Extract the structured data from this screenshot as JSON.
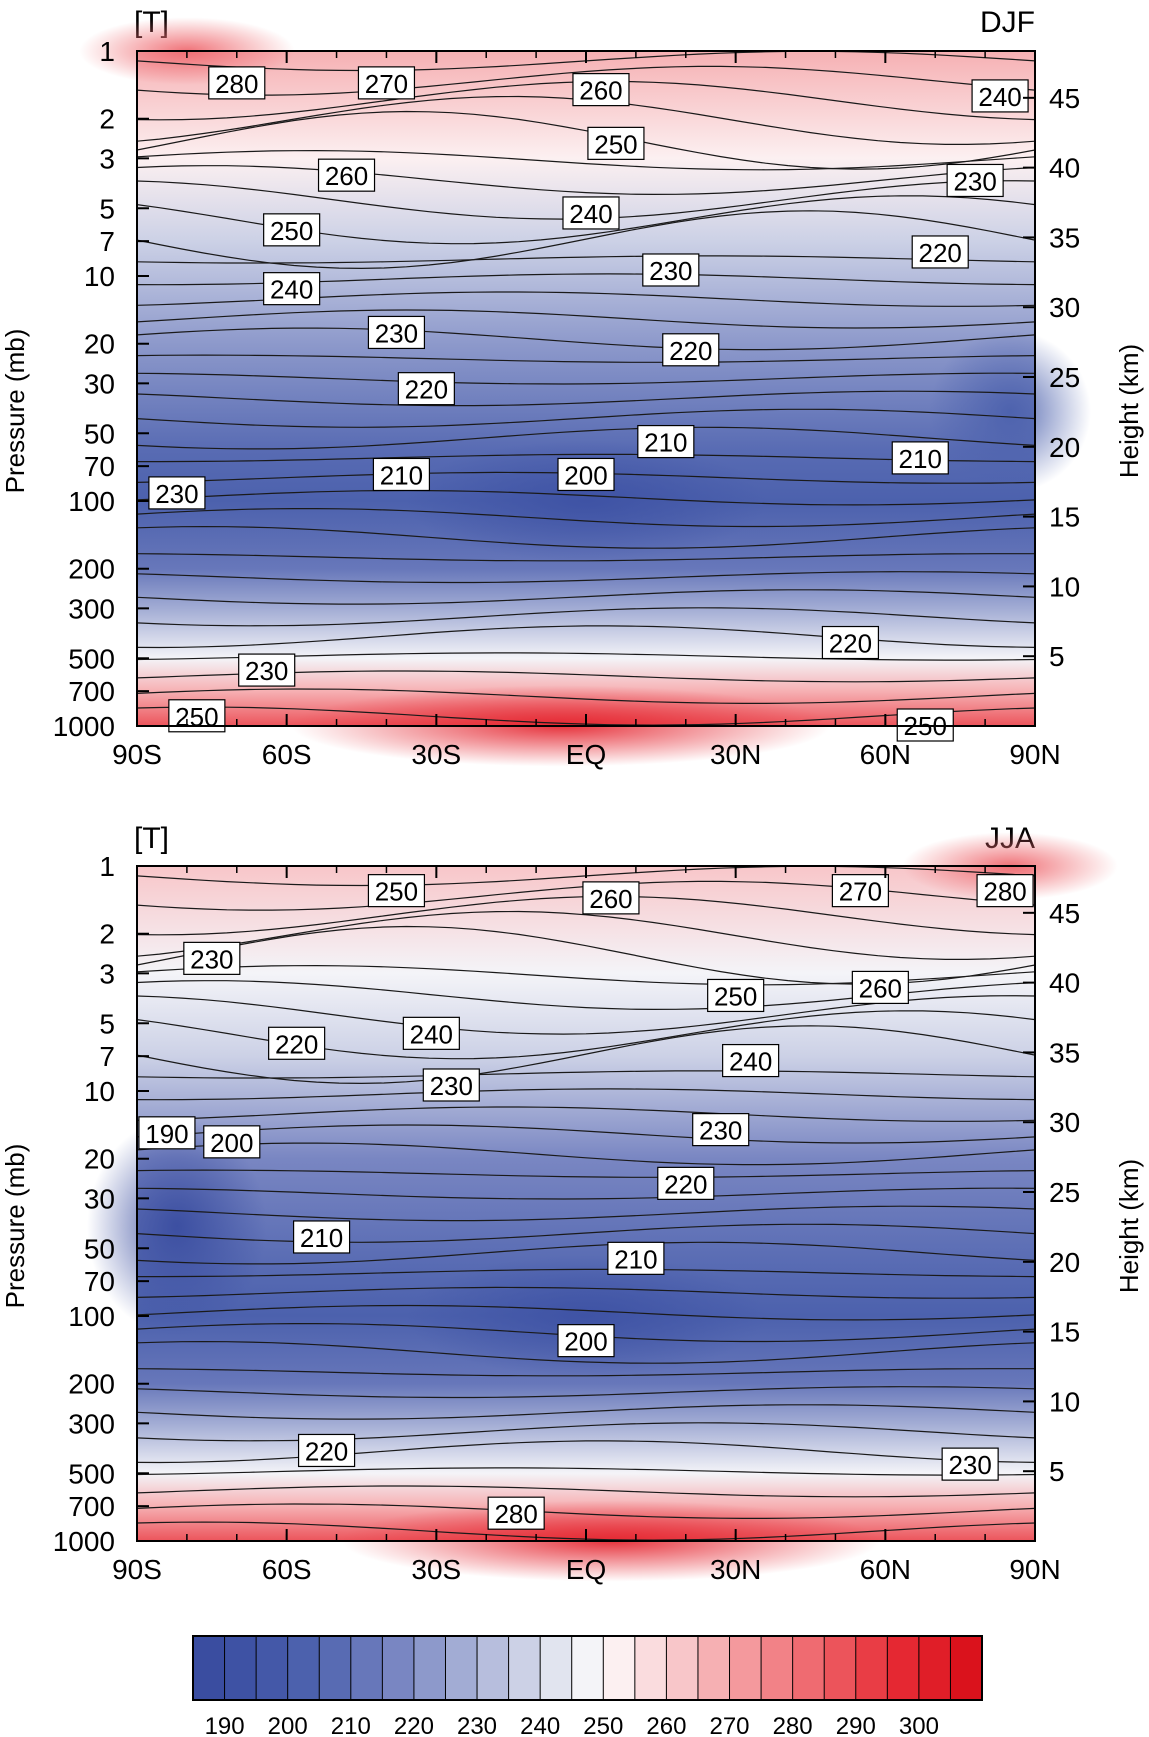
{
  "chart_data": [
    {
      "type": "heatmap",
      "variable": "[T]",
      "season": "DJF",
      "xlabel": "",
      "ylabel": "Pressure (mb)",
      "y2label": "Height (km)",
      "x_ticks": [
        "90S",
        "60S",
        "30S",
        "EQ",
        "30N",
        "60N",
        "90N"
      ],
      "x_values": [
        -90,
        -60,
        -30,
        0,
        30,
        60,
        90
      ],
      "y_ticks": [
        "1",
        "2",
        "3",
        "5",
        "7",
        "10",
        "20",
        "30",
        "50",
        "70",
        "100",
        "200",
        "300",
        "500",
        "700",
        "1000"
      ],
      "y_values": [
        1,
        2,
        3,
        5,
        7,
        10,
        20,
        30,
        50,
        70,
        100,
        200,
        300,
        500,
        700,
        1000
      ],
      "y_scale": "log",
      "ylim": [
        1000,
        1
      ],
      "y2_ticks": [
        "5",
        "10",
        "15",
        "20",
        "25",
        "30",
        "35",
        "40",
        "45"
      ],
      "y2_values": [
        5,
        10,
        15,
        20,
        25,
        30,
        35,
        40,
        45
      ],
      "contour_labels": [
        {
          "text": "280",
          "lat": -70,
          "p": 1.4
        },
        {
          "text": "270",
          "lat": -40,
          "p": 1.4
        },
        {
          "text": "260",
          "lat": 3,
          "p": 1.5
        },
        {
          "text": "240",
          "lat": 83,
          "p": 1.6
        },
        {
          "text": "250",
          "lat": 6,
          "p": 2.6
        },
        {
          "text": "260",
          "lat": -48,
          "p": 3.6
        },
        {
          "text": "230",
          "lat": 78,
          "p": 3.8
        },
        {
          "text": "240",
          "lat": 1,
          "p": 5.3
        },
        {
          "text": "250",
          "lat": -59,
          "p": 6.3
        },
        {
          "text": "220",
          "lat": 71,
          "p": 7.9
        },
        {
          "text": "230",
          "lat": 17,
          "p": 9.5
        },
        {
          "text": "240",
          "lat": -59,
          "p": 11.5
        },
        {
          "text": "230",
          "lat": -38,
          "p": 18
        },
        {
          "text": "220",
          "lat": 21,
          "p": 21.5
        },
        {
          "text": "220",
          "lat": -32,
          "p": 32
        },
        {
          "text": "210",
          "lat": 16,
          "p": 55
        },
        {
          "text": "210",
          "lat": 67,
          "p": 65
        },
        {
          "text": "210",
          "lat": -37,
          "p": 77
        },
        {
          "text": "200",
          "lat": 0,
          "p": 77
        },
        {
          "text": "230",
          "lat": -82,
          "p": 93
        },
        {
          "text": "220",
          "lat": 53,
          "p": 430
        },
        {
          "text": "230",
          "lat": -64,
          "p": 570
        },
        {
          "text": "250",
          "lat": -78,
          "p": 910
        },
        {
          "text": "250",
          "lat": 68,
          "p": 1000
        }
      ]
    },
    {
      "type": "heatmap",
      "variable": "[T]",
      "season": "JJA",
      "xlabel": "",
      "ylabel": "Pressure (mb)",
      "y2label": "Height (km)",
      "x_ticks": [
        "90S",
        "60S",
        "30S",
        "EQ",
        "30N",
        "60N",
        "90N"
      ],
      "x_values": [
        -90,
        -60,
        -30,
        0,
        30,
        60,
        90
      ],
      "y_ticks": [
        "1",
        "2",
        "3",
        "5",
        "7",
        "10",
        "20",
        "30",
        "50",
        "70",
        "100",
        "200",
        "300",
        "500",
        "700",
        "1000"
      ],
      "y_values": [
        1,
        2,
        3,
        5,
        7,
        10,
        20,
        30,
        50,
        70,
        100,
        200,
        300,
        500,
        700,
        1000
      ],
      "y_scale": "log",
      "ylim": [
        1000,
        1
      ],
      "y2_ticks": [
        "5",
        "10",
        "15",
        "20",
        "25",
        "30",
        "35",
        "40",
        "45"
      ],
      "y2_values": [
        5,
        10,
        15,
        20,
        25,
        30,
        35,
        40,
        45
      ],
      "contour_labels": [
        {
          "text": "250",
          "lat": -38,
          "p": 1.3
        },
        {
          "text": "260",
          "lat": 5,
          "p": 1.4
        },
        {
          "text": "270",
          "lat": 55,
          "p": 1.3
        },
        {
          "text": "280",
          "lat": 84,
          "p": 1.3
        },
        {
          "text": "230",
          "lat": -75,
          "p": 2.6
        },
        {
          "text": "260",
          "lat": 59,
          "p": 3.5
        },
        {
          "text": "250",
          "lat": 30,
          "p": 3.8
        },
        {
          "text": "240",
          "lat": -31,
          "p": 5.6
        },
        {
          "text": "220",
          "lat": -58,
          "p": 6.2
        },
        {
          "text": "240",
          "lat": 33,
          "p": 7.4
        },
        {
          "text": "230",
          "lat": -27,
          "p": 9.5
        },
        {
          "text": "230",
          "lat": 27,
          "p": 15
        },
        {
          "text": "190",
          "lat": -84,
          "p": 15.5
        },
        {
          "text": "200",
          "lat": -71,
          "p": 17
        },
        {
          "text": "220",
          "lat": 20,
          "p": 26
        },
        {
          "text": "210",
          "lat": -53,
          "p": 45
        },
        {
          "text": "210",
          "lat": 10,
          "p": 56
        },
        {
          "text": "200",
          "lat": 0,
          "p": 130
        },
        {
          "text": "220",
          "lat": -52,
          "p": 400
        },
        {
          "text": "230",
          "lat": 77,
          "p": 460
        },
        {
          "text": "280",
          "lat": -14,
          "p": 760
        }
      ]
    }
  ],
  "colorbar": {
    "labels": [
      "190",
      "200",
      "210",
      "220",
      "230",
      "240",
      "250",
      "260",
      "270",
      "280",
      "290",
      "300"
    ],
    "values": [
      190,
      200,
      210,
      220,
      230,
      240,
      250,
      260,
      270,
      280,
      290,
      300
    ],
    "colors": [
      "#3a4da0",
      "#3e52a4",
      "#4458a8",
      "#4c61ad",
      "#586bb3",
      "#6777ba",
      "#7986c2",
      "#8d99cb",
      "#a2acd4",
      "#b7bedd",
      "#ccd1e6",
      "#e1e4ef",
      "#f4f4f8",
      "#fcf0f1",
      "#fadcde",
      "#f8c6c9",
      "#f6b0b3",
      "#f4999d",
      "#f28287",
      "#ef6b71",
      "#ec545b",
      "#e93d45",
      "#e52832",
      "#e01e28",
      "#da121c"
    ]
  }
}
